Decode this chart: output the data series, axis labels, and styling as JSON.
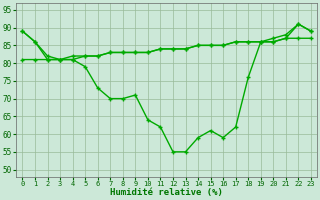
{
  "x": [
    0,
    1,
    2,
    3,
    4,
    5,
    6,
    7,
    8,
    9,
    10,
    11,
    12,
    13,
    14,
    15,
    16,
    17,
    18,
    19,
    20,
    21,
    22,
    23
  ],
  "curve_main": [
    89,
    86,
    81,
    81,
    81,
    79,
    73,
    70,
    70,
    71,
    64,
    62,
    55,
    55,
    59,
    61,
    59,
    62,
    76,
    86,
    87,
    88,
    91,
    89
  ],
  "curve_trend": [
    81,
    81,
    81,
    81,
    82,
    82,
    82,
    83,
    83,
    83,
    83,
    84,
    84,
    84,
    85,
    85,
    85,
    86,
    86,
    86,
    86,
    87,
    87,
    87
  ],
  "curve_upper": [
    89,
    86,
    82,
    81,
    81,
    82,
    82,
    83,
    83,
    83,
    83,
    84,
    84,
    84,
    85,
    85,
    85,
    86,
    86,
    86,
    86,
    87,
    91,
    89
  ],
  "ylim": [
    48,
    97
  ],
  "xlim": [
    -0.5,
    23.5
  ],
  "yticks": [
    50,
    55,
    60,
    65,
    70,
    75,
    80,
    85,
    90,
    95
  ],
  "xticks": [
    0,
    1,
    2,
    3,
    4,
    5,
    6,
    7,
    8,
    9,
    10,
    11,
    12,
    13,
    14,
    15,
    16,
    17,
    18,
    19,
    20,
    21,
    22,
    23
  ],
  "xlabel": "Humidité relative (%)",
  "line_color": "#00aa00",
  "bg_color": "#cce8d8",
  "grid_color": "#99bb99",
  "markersize": 2.5
}
